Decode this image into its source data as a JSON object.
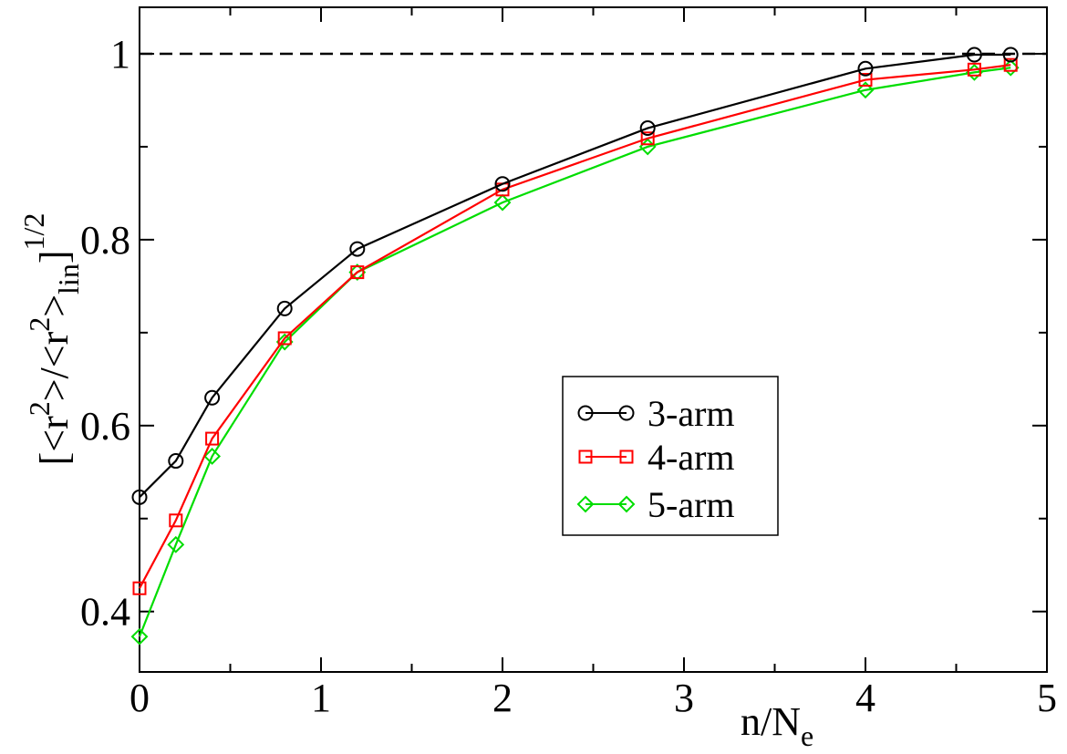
{
  "chart_data": {
    "type": "line",
    "title": "",
    "xlabel_main": "n/N",
    "xlabel_sub": "e",
    "ylabel": {
      "open": "[<r",
      "sup1": "2",
      "mid": ">/<r",
      "sup2": "2",
      "close": ">",
      "sub": "lin",
      "bracket": "]",
      "power": "1/2"
    },
    "xlim": [
      0,
      5
    ],
    "ylim": [
      0.335,
      1.05
    ],
    "x_ticks": [
      {
        "value": 0,
        "label": "0"
      },
      {
        "value": 1,
        "label": "1"
      },
      {
        "value": 2,
        "label": "2"
      },
      {
        "value": 3,
        "label": "3"
      },
      {
        "value": 4,
        "label": "4"
      },
      {
        "value": 5,
        "label": "5"
      }
    ],
    "y_ticks": [
      {
        "value": 0.4,
        "label": "0.4"
      },
      {
        "value": 0.6,
        "label": "0.6"
      },
      {
        "value": 0.8,
        "label": "0.8"
      },
      {
        "value": 1.0,
        "label": "1"
      }
    ],
    "reference_line": {
      "y": 1.0,
      "style": "dashed",
      "color": "#000000"
    },
    "legend_position": "center-right",
    "series": [
      {
        "name": "3-arm",
        "color": "#000000",
        "marker": "circle",
        "x": [
          0,
          0.2,
          0.4,
          0.8,
          1.2,
          2.0,
          2.8,
          4.0,
          4.6,
          4.8
        ],
        "y": [
          0.523,
          0.562,
          0.63,
          0.726,
          0.79,
          0.86,
          0.92,
          0.984,
          0.999,
          0.999
        ]
      },
      {
        "name": "4-arm",
        "color": "#ff0000",
        "marker": "square",
        "x": [
          0,
          0.2,
          0.4,
          0.8,
          1.2,
          2.0,
          2.8,
          4.0,
          4.6,
          4.8
        ],
        "y": [
          0.425,
          0.498,
          0.586,
          0.694,
          0.765,
          0.854,
          0.909,
          0.972,
          0.983,
          0.988
        ]
      },
      {
        "name": "5-arm",
        "color": "#00dd00",
        "marker": "diamond",
        "x": [
          0,
          0.2,
          0.4,
          0.8,
          1.2,
          2.0,
          2.8,
          4.0,
          4.6,
          4.8
        ],
        "y": [
          0.373,
          0.472,
          0.567,
          0.69,
          0.765,
          0.84,
          0.9,
          0.961,
          0.98,
          0.985
        ]
      }
    ]
  }
}
